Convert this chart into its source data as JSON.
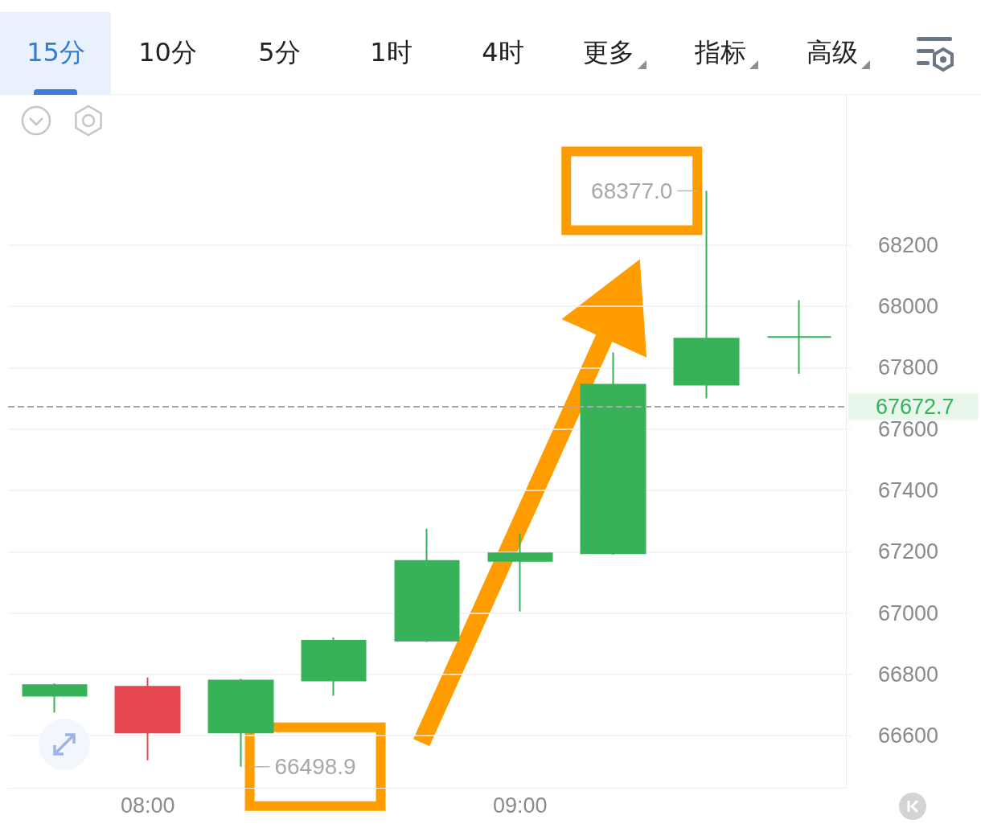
{
  "chart_data": {
    "type": "candlestick",
    "categories": [
      null,
      "08:00",
      null,
      null,
      null,
      "09:00",
      null,
      null,
      null
    ],
    "ohlc": [
      [
        66730,
        66770,
        66675,
        66765
      ],
      [
        66760,
        66790,
        66520,
        66610
      ],
      [
        66610,
        66785,
        66498.9,
        66780
      ],
      [
        66780,
        66920,
        66730,
        66910
      ],
      [
        66910,
        67275,
        66905,
        67170
      ],
      [
        67170,
        67260,
        67005,
        67195
      ],
      [
        67195,
        67850,
        67190,
        67745
      ],
      [
        67745,
        68377.0,
        67700,
        67895
      ],
      [
        67900,
        68020,
        67780,
        67900
      ]
    ],
    "colors": [
      "#38b259",
      "#e5484f",
      "#38b259",
      "#38b259",
      "#38b259",
      "#38b259",
      "#38b259",
      "#38b259",
      "#38b259"
    ],
    "ylim": [
      66430,
      68690
    ],
    "yticks": [
      66600,
      66800,
      67000,
      67200,
      67400,
      67600,
      67800,
      68000,
      68200
    ],
    "grid": "y",
    "ref_lines": [
      {
        "axis": "y",
        "value": 67672.7,
        "label": "67672.7",
        "color": "#a6a6a6",
        "line_style": "dashed"
      }
    ],
    "annotations": [
      "68377.0",
      "66498.9",
      "15分",
      "10分",
      "5分",
      "1时",
      "4时",
      "更多",
      "指标",
      "高级"
    ]
  }
}
